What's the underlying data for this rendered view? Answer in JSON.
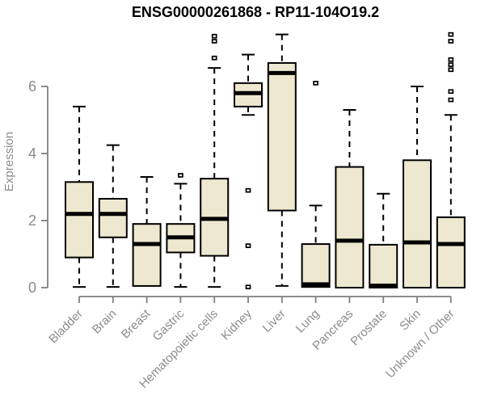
{
  "title": "ENSG00000261868 - RP11-104O19.2",
  "chart_data": {
    "type": "boxplot",
    "title": "ENSG00000261868 - RP11-104O19.2",
    "xlabel": "",
    "ylabel": "Expression",
    "yticks": [
      0,
      2,
      4,
      6
    ],
    "ylim": [
      -0.3,
      7.85
    ],
    "grid": false,
    "legend": null,
    "categories": [
      "Bladder",
      "Brain",
      "Breast",
      "Gastric",
      "Hematopoietic cells",
      "Kidney",
      "Liver",
      "Lung",
      "Pancreas",
      "Prostate",
      "Skin",
      "Unknown / Other"
    ],
    "boxes": [
      {
        "category": "Bladder",
        "whisker_low": 0.02,
        "q1": 0.9,
        "median": 2.2,
        "q3": 3.15,
        "whisker_high": 5.4,
        "outliers": []
      },
      {
        "category": "Brain",
        "whisker_low": 0.02,
        "q1": 1.5,
        "median": 2.2,
        "q3": 2.65,
        "whisker_high": 4.25,
        "outliers": []
      },
      {
        "category": "Breast",
        "whisker_low": 0.05,
        "q1": 0.05,
        "median": 1.3,
        "q3": 1.9,
        "whisker_high": 3.3,
        "outliers": []
      },
      {
        "category": "Gastric",
        "whisker_low": 0.02,
        "q1": 1.05,
        "median": 1.5,
        "q3": 1.9,
        "whisker_high": 3.1,
        "outliers": [
          3.35
        ]
      },
      {
        "category": "Hematopoietic cells",
        "whisker_low": 0.02,
        "q1": 0.95,
        "median": 2.05,
        "q3": 3.25,
        "whisker_high": 6.55,
        "outliers": [
          6.85,
          7.35,
          7.5
        ]
      },
      {
        "category": "Kidney",
        "whisker_low": 5.15,
        "q1": 5.4,
        "median": 5.8,
        "q3": 6.1,
        "whisker_high": 6.95,
        "outliers": [
          2.9,
          1.25,
          0.02
        ]
      },
      {
        "category": "Liver",
        "whisker_low": 0.05,
        "q1": 2.3,
        "median": 6.4,
        "q3": 6.7,
        "whisker_high": 7.55,
        "outliers": []
      },
      {
        "category": "Lung",
        "whisker_low": 0.02,
        "q1": 0.02,
        "median": 0.1,
        "q3": 1.3,
        "whisker_high": 2.45,
        "outliers": [
          6.1
        ]
      },
      {
        "category": "Pancreas",
        "whisker_low": 0.0,
        "q1": 0.0,
        "median": 1.4,
        "q3": 3.6,
        "whisker_high": 5.3,
        "outliers": []
      },
      {
        "category": "Prostate",
        "whisker_low": 0.0,
        "q1": 0.0,
        "median": 0.06,
        "q3": 1.28,
        "whisker_high": 2.8,
        "outliers": []
      },
      {
        "category": "Skin",
        "whisker_low": 0.0,
        "q1": 0.0,
        "median": 1.35,
        "q3": 3.8,
        "whisker_high": 6.0,
        "outliers": []
      },
      {
        "category": "Unknown / Other",
        "whisker_low": 0.0,
        "q1": 0.0,
        "median": 1.3,
        "q3": 2.1,
        "whisker_high": 5.15,
        "outliers": [
          5.6,
          5.85,
          6.5,
          6.65,
          6.8,
          7.35,
          7.55
        ]
      }
    ],
    "colors": {
      "box_fill": "#ede8cf",
      "box_stroke": "#000000",
      "median": "#000000",
      "axis": "#7f7f7f",
      "tick_label": "#8c8c8c",
      "title": "#000000",
      "background": "#ffffff"
    }
  }
}
